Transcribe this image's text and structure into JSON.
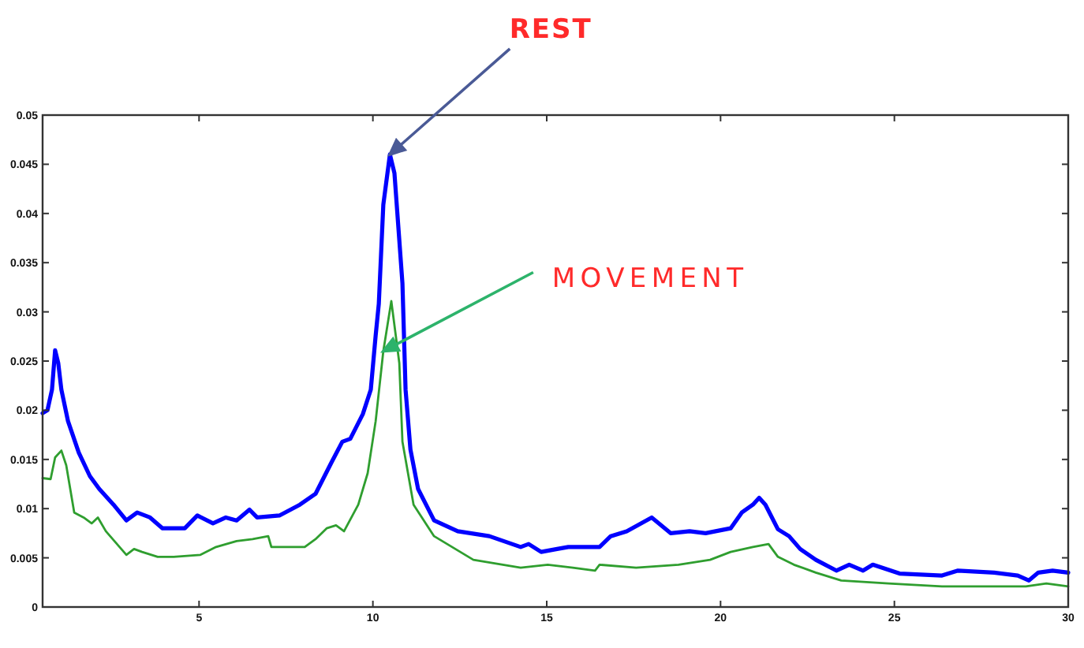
{
  "chart_data": {
    "type": "line",
    "xlim": [
      0.5,
      30
    ],
    "xticks": [
      5,
      10,
      15,
      20,
      25,
      30
    ],
    "ylim": [
      0,
      0.05
    ],
    "yticks": [
      0,
      0.005,
      0.01,
      0.015,
      0.02,
      0.025,
      0.03,
      0.035,
      0.04,
      0.045,
      0.05
    ],
    "series": [
      {
        "color": "#0000ff",
        "x": [
          0.5,
          0.64,
          0.77,
          0.86,
          0.95,
          1.04,
          1.23,
          1.54,
          1.86,
          2.13,
          2.54,
          2.91,
          3.22,
          3.59,
          3.95,
          4.59,
          4.95,
          5.4,
          5.77,
          6.08,
          6.45,
          6.67,
          7.31,
          7.9,
          8.35,
          8.81,
          9.12,
          9.35,
          9.71,
          9.94,
          10.08,
          10.17,
          10.3,
          10.49,
          10.62,
          10.85,
          10.94,
          11.08,
          11.3,
          11.76,
          12.44,
          13.35,
          14.25,
          14.48,
          14.84,
          15.3,
          15.62,
          16.52,
          16.84,
          17.3,
          18.02,
          18.57,
          19.11,
          19.57,
          20.29,
          20.61,
          20.93,
          21.11,
          21.29,
          21.65,
          21.97,
          22.29,
          22.74,
          23.33,
          23.7,
          24.1,
          24.38,
          25.15,
          26.37,
          26.83,
          27.87,
          28.55,
          28.87,
          29.14,
          29.55,
          30
        ],
        "values": [
          0.0197,
          0.02,
          0.0221,
          0.0261,
          0.0248,
          0.0221,
          0.0189,
          0.0157,
          0.0133,
          0.012,
          0.0104,
          0.0088,
          0.0096,
          0.0091,
          0.008,
          0.008,
          0.0093,
          0.0085,
          0.0091,
          0.0088,
          0.0099,
          0.0091,
          0.0093,
          0.0104,
          0.0115,
          0.0147,
          0.0168,
          0.0171,
          0.0196,
          0.0221,
          0.0276,
          0.0308,
          0.0409,
          0.046,
          0.0441,
          0.0329,
          0.0221,
          0.016,
          0.012,
          0.0088,
          0.0077,
          0.0072,
          0.0061,
          0.0064,
          0.0056,
          0.0059,
          0.0061,
          0.0061,
          0.0072,
          0.0077,
          0.0091,
          0.0075,
          0.0077,
          0.0075,
          0.008,
          0.0096,
          0.0104,
          0.0111,
          0.0104,
          0.0079,
          0.0072,
          0.0059,
          0.0048,
          0.0037,
          0.0043,
          0.0037,
          0.0043,
          0.0034,
          0.0032,
          0.0037,
          0.0035,
          0.0032,
          0.0027,
          0.0035,
          0.0037,
          0.0035
        ]
      },
      {
        "color": "#2f9e2f",
        "x": [
          0.5,
          0.73,
          0.86,
          1.04,
          1.18,
          1.41,
          1.68,
          1.91,
          2.09,
          2.32,
          2.91,
          3.13,
          3.36,
          3.81,
          4.27,
          5.04,
          5.49,
          6.08,
          6.54,
          6.99,
          7.08,
          7.45,
          8.04,
          8.35,
          8.67,
          8.94,
          9.17,
          9.58,
          9.85,
          10.08,
          10.3,
          10.53,
          10.76,
          10.85,
          11.17,
          11.76,
          12.89,
          14.25,
          15.03,
          15.75,
          16.39,
          16.52,
          17.57,
          18.79,
          19.7,
          20.29,
          20.93,
          21.38,
          21.65,
          22.11,
          22.74,
          23.47,
          24.83,
          26.37,
          27.87,
          28.78,
          29.37,
          30
        ],
        "values": [
          0.0131,
          0.013,
          0.0152,
          0.0159,
          0.0144,
          0.0096,
          0.0091,
          0.0085,
          0.0091,
          0.0077,
          0.0053,
          0.0059,
          0.0056,
          0.0051,
          0.0051,
          0.0053,
          0.0061,
          0.0067,
          0.0069,
          0.0072,
          0.0061,
          0.0061,
          0.0061,
          0.0069,
          0.008,
          0.0083,
          0.0077,
          0.0104,
          0.0136,
          0.0189,
          0.026,
          0.0311,
          0.0248,
          0.0168,
          0.0104,
          0.0072,
          0.0048,
          0.004,
          0.0043,
          0.004,
          0.0037,
          0.0043,
          0.004,
          0.0043,
          0.0048,
          0.0056,
          0.0061,
          0.0064,
          0.0051,
          0.0043,
          0.0035,
          0.0027,
          0.0024,
          0.0021,
          0.0021,
          0.0021,
          0.0024,
          0.0021
        ]
      }
    ],
    "annotations": [
      {
        "text": "REST",
        "x": 10.49,
        "y": 0.046
      },
      {
        "text": "MOVEMENT",
        "x": 10.3,
        "y": 0.026
      }
    ]
  }
}
